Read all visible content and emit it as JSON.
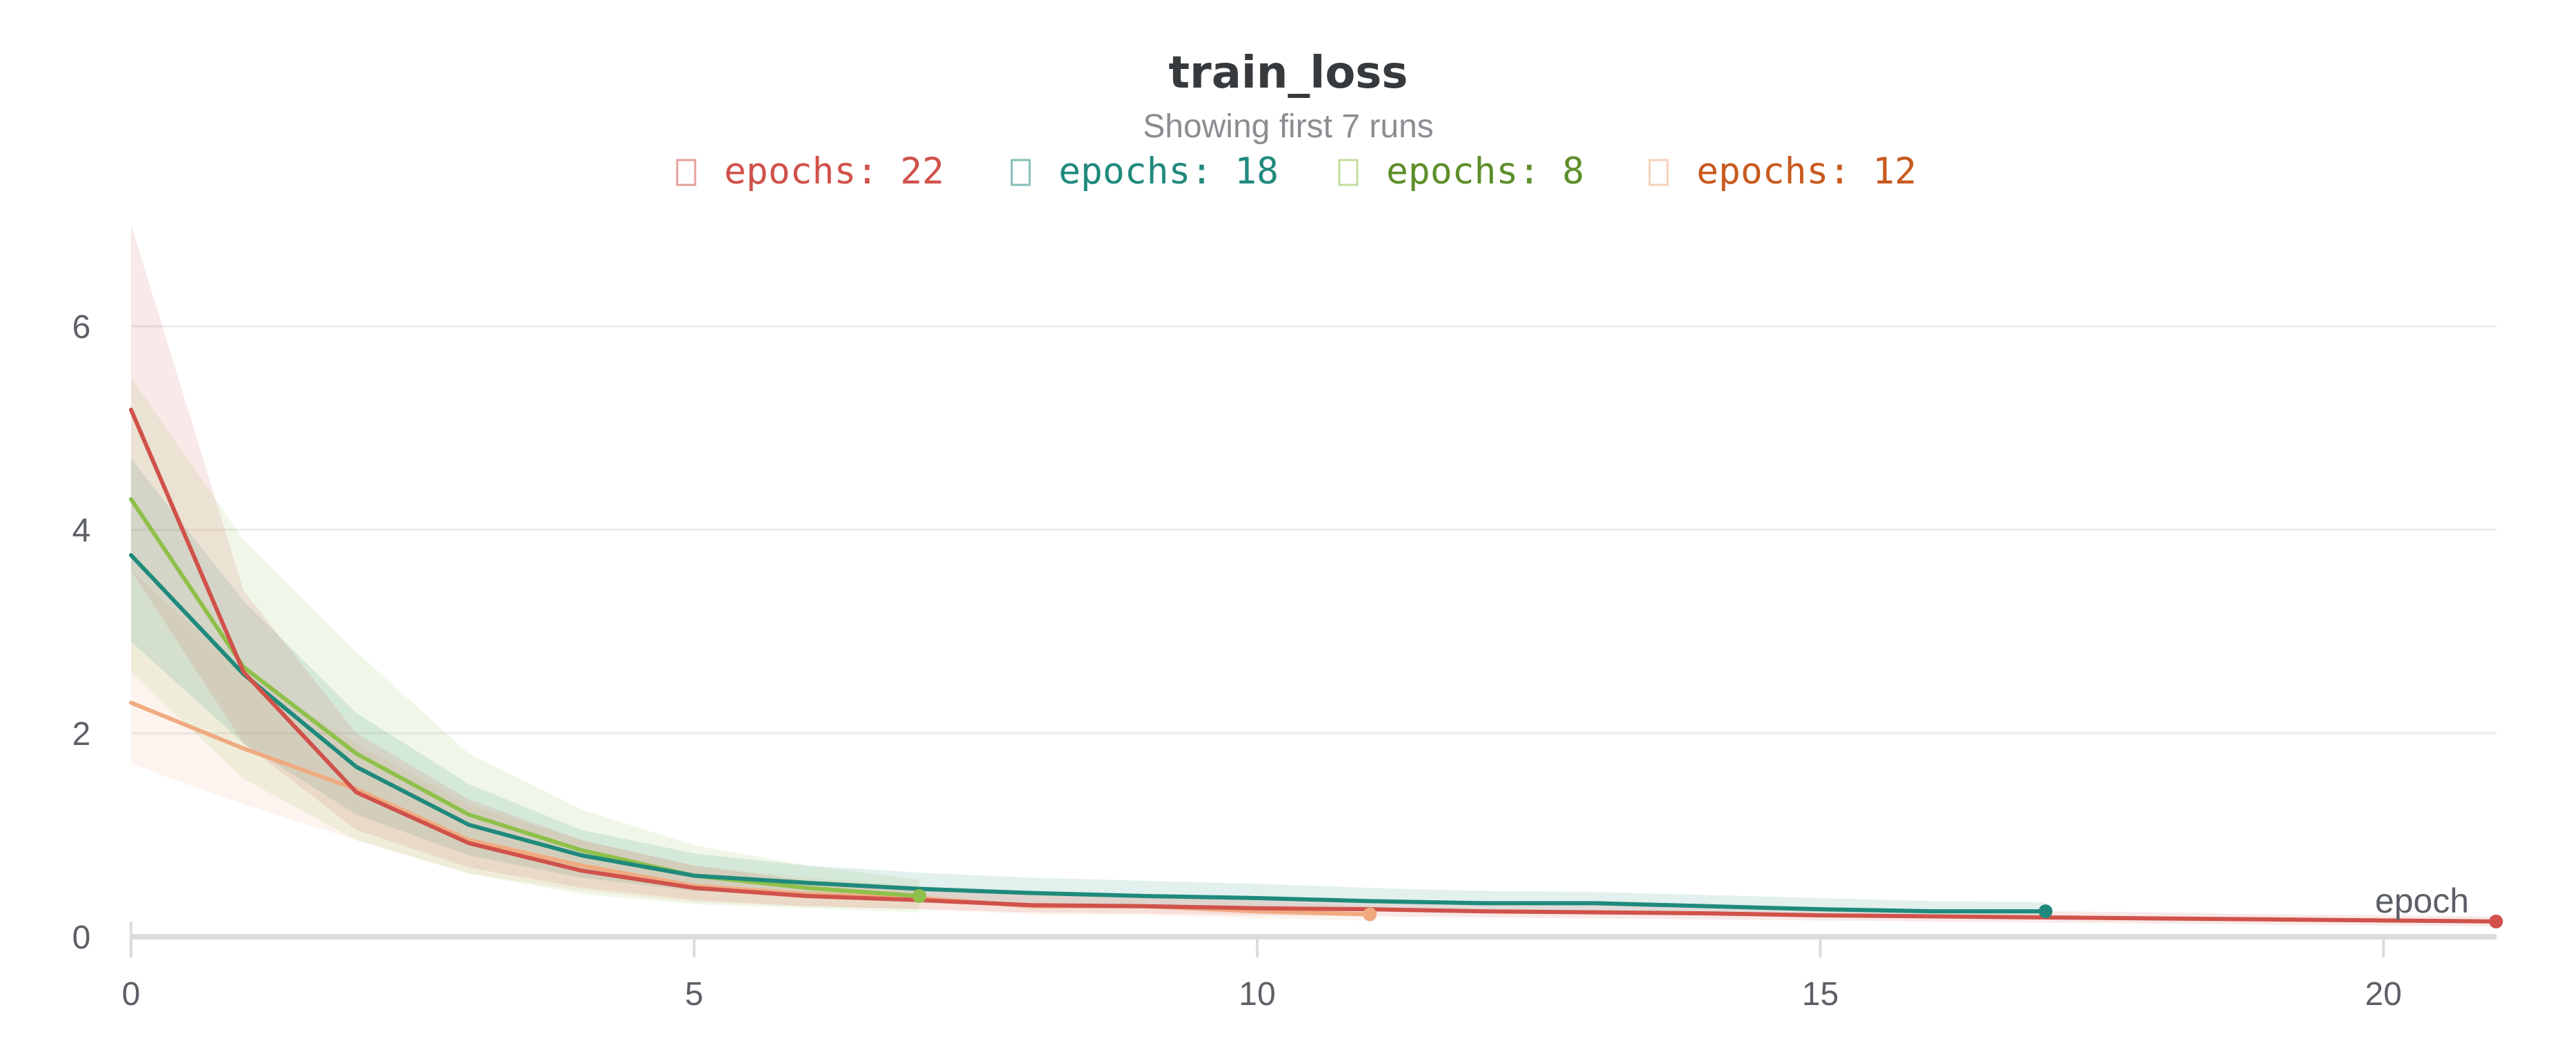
{
  "chart_data": {
    "type": "line",
    "title": "train_loss",
    "subtitle": "Showing first 7 runs",
    "xlabel": "epoch",
    "ylabel": "",
    "xlim": [
      0,
      21
    ],
    "ylim": [
      0,
      7
    ],
    "x_ticks": [
      0,
      5,
      10,
      15,
      20
    ],
    "y_ticks": [
      0,
      2,
      4,
      6
    ],
    "grid": "horizontal",
    "legend_position": "top-center",
    "series": [
      {
        "name": "epochs: 22",
        "color": "#d0524b",
        "x": [
          0,
          1,
          2,
          3,
          4,
          5,
          6,
          7,
          8,
          9,
          10,
          11,
          12,
          13,
          14,
          15,
          16,
          17,
          18,
          19,
          20,
          21
        ],
        "values": [
          5.18,
          2.6,
          1.42,
          0.92,
          0.65,
          0.48,
          0.4,
          0.36,
          0.31,
          0.3,
          0.28,
          0.27,
          0.25,
          0.24,
          0.23,
          0.21,
          0.2,
          0.19,
          0.18,
          0.17,
          0.16,
          0.15
        ],
        "band_upper": [
          7.0,
          3.4,
          2.0,
          1.35,
          0.95,
          0.7,
          0.55,
          0.48,
          0.42,
          0.4,
          0.37,
          0.35,
          0.33,
          0.31,
          0.3,
          0.28,
          0.27,
          0.25,
          0.24,
          0.22,
          0.21,
          0.2
        ],
        "band_lower": [
          3.6,
          1.9,
          1.05,
          0.68,
          0.48,
          0.36,
          0.3,
          0.27,
          0.24,
          0.23,
          0.21,
          0.2,
          0.19,
          0.18,
          0.17,
          0.16,
          0.15,
          0.14,
          0.13,
          0.12,
          0.11,
          0.1
        ]
      },
      {
        "name": "epochs: 18",
        "color": "#1f8a7c",
        "x": [
          0,
          1,
          2,
          3,
          4,
          5,
          6,
          7,
          8,
          9,
          10,
          11,
          12,
          13,
          14,
          15,
          16,
          17
        ],
        "values": [
          3.75,
          2.58,
          1.67,
          1.1,
          0.8,
          0.6,
          0.53,
          0.47,
          0.43,
          0.4,
          0.38,
          0.35,
          0.33,
          0.33,
          0.3,
          0.27,
          0.25,
          0.25
        ],
        "band_upper": [
          4.7,
          3.3,
          2.2,
          1.5,
          1.05,
          0.82,
          0.7,
          0.63,
          0.58,
          0.55,
          0.52,
          0.48,
          0.45,
          0.44,
          0.41,
          0.38,
          0.35,
          0.34
        ],
        "band_lower": [
          2.9,
          1.9,
          1.2,
          0.8,
          0.58,
          0.45,
          0.4,
          0.36,
          0.33,
          0.31,
          0.29,
          0.27,
          0.25,
          0.24,
          0.22,
          0.2,
          0.19,
          0.18
        ]
      },
      {
        "name": "epochs: 8",
        "color": "#8fc04a",
        "x": [
          0,
          1,
          2,
          3,
          4,
          5,
          6,
          7
        ],
        "values": [
          4.3,
          2.65,
          1.8,
          1.2,
          0.85,
          0.6,
          0.48,
          0.4
        ],
        "band_upper": [
          5.5,
          3.9,
          2.8,
          1.8,
          1.25,
          0.9,
          0.7,
          0.56
        ],
        "band_lower": [
          2.6,
          1.55,
          0.95,
          0.62,
          0.42,
          0.32,
          0.28,
          0.24
        ]
      },
      {
        "name": "epochs: 12",
        "color": "#f0aa80",
        "x": [
          0,
          1,
          2,
          3,
          4,
          5,
          6,
          7,
          8,
          9,
          10,
          11
        ],
        "values": [
          2.3,
          1.85,
          1.45,
          0.95,
          0.7,
          0.5,
          0.42,
          0.38,
          0.3,
          0.3,
          0.25,
          0.22
        ],
        "band_upper": [
          3.6,
          2.6,
          1.9,
          1.3,
          0.95,
          0.7,
          0.58,
          0.5,
          0.42,
          0.4,
          0.35,
          0.3
        ],
        "band_lower": [
          1.7,
          1.3,
          0.95,
          0.62,
          0.45,
          0.34,
          0.3,
          0.27,
          0.22,
          0.21,
          0.18,
          0.16
        ]
      }
    ]
  },
  "legend_text_colors": [
    "#d0524b",
    "#1f8a7c",
    "#5e8e2a",
    "#c85a1e"
  ]
}
